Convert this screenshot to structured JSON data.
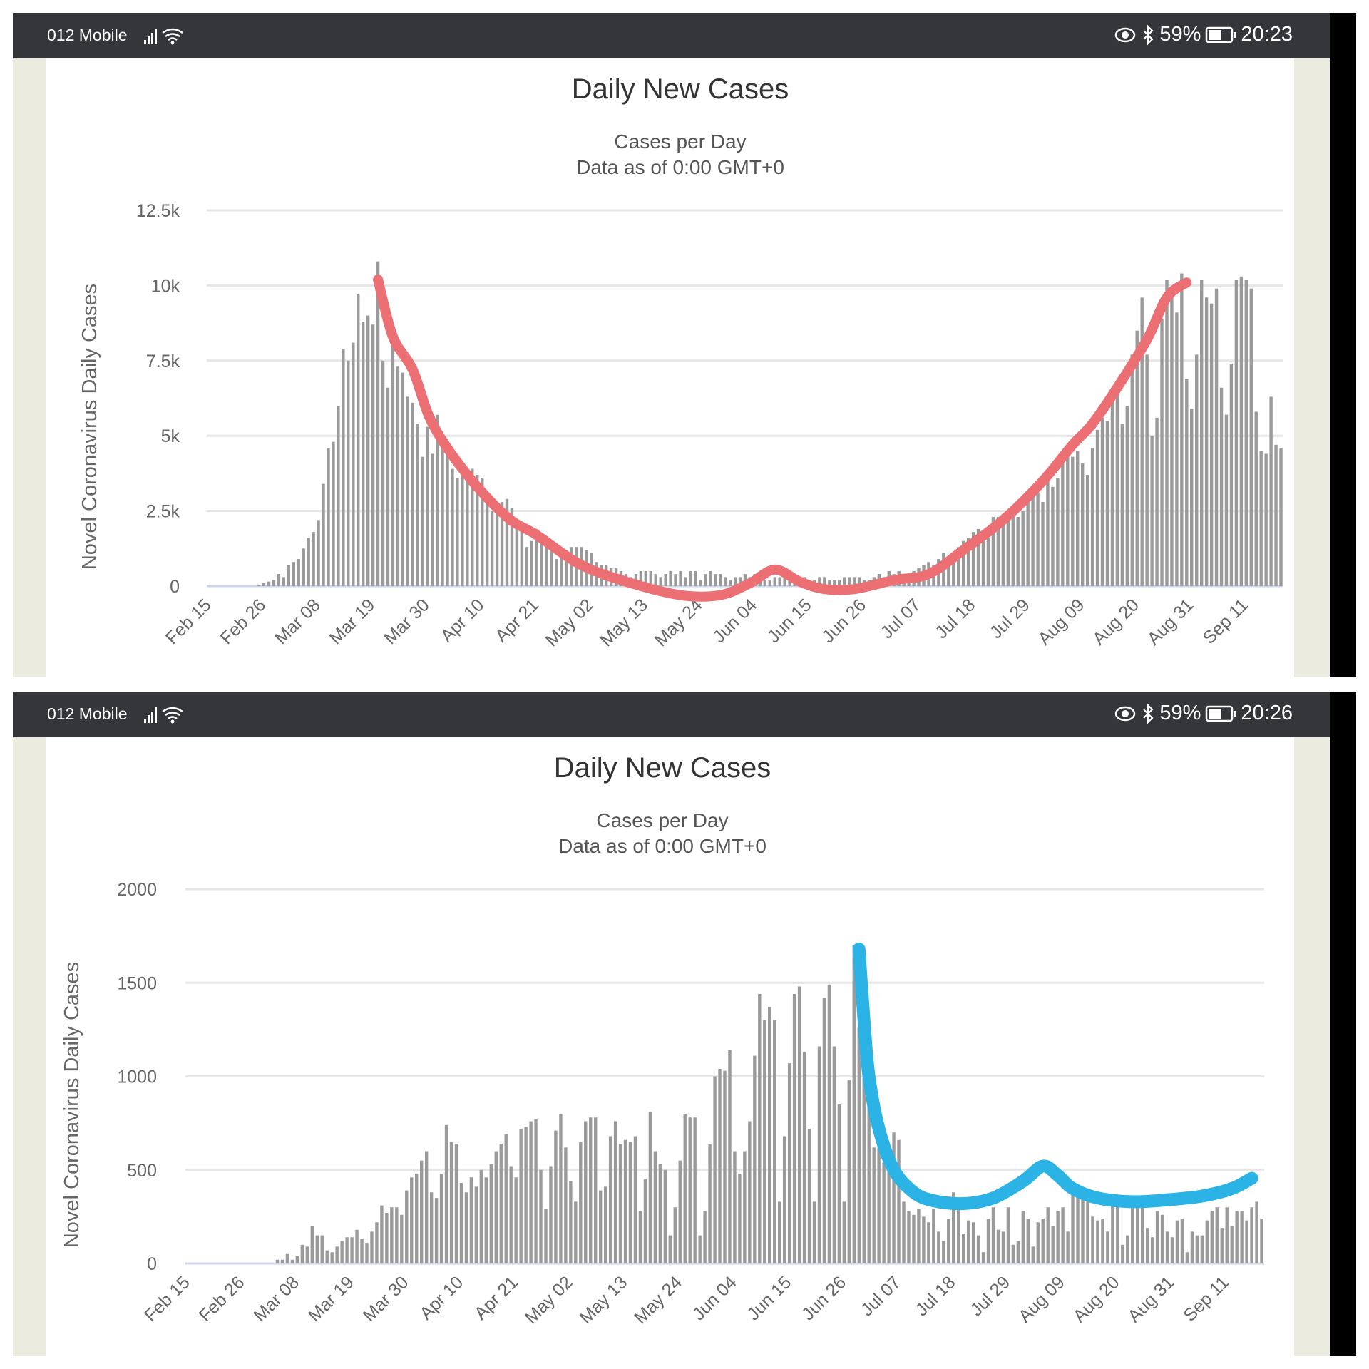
{
  "screens": [
    {
      "status_bar": {
        "carrier": "012 Mobile",
        "battery": "59%",
        "time": "20:23"
      },
      "title": "Daily New Cases",
      "subtitle_1": "Cases per Day",
      "subtitle_2": "Data as of 0:00 GMT+0"
    },
    {
      "status_bar": {
        "carrier": "012 Mobile",
        "battery": "59%",
        "time": "20:26"
      },
      "title": "Daily New Cases",
      "subtitle_1": "Cases per Day",
      "subtitle_2": "Data as of 0:00 GMT+0"
    }
  ],
  "colors": {
    "bar": "#9a9a9a",
    "grid": "#e6e6e6",
    "red_annotation": "#ec6f74",
    "blue_annotation": "#2bb3e6",
    "status_bg": "#35363a"
  },
  "chart_data": [
    {
      "type": "bar",
      "title": "Daily New Cases",
      "subtitle": "Cases per Day / Data as of 0:00 GMT+0",
      "xlabel": "",
      "ylabel": "Novel Coronavirus Daily Cases",
      "ylim": [
        0,
        12500
      ],
      "yticks": [
        0,
        2500,
        5000,
        7500,
        10000,
        12500
      ],
      "ytick_labels": [
        "0",
        "2.5k",
        "5k",
        "7.5k",
        "10k",
        "12.5k"
      ],
      "x_start": "Feb 15",
      "xtick_labels": [
        "Feb 15",
        "Feb 26",
        "Mar 08",
        "Mar 19",
        "Mar 30",
        "Apr 10",
        "Apr 21",
        "May 02",
        "May 13",
        "May 24",
        "Jun 04",
        "Jun 15",
        "Jun 26",
        "Jul 07",
        "Jul 18",
        "Jul 29",
        "Aug 09",
        "Aug 20",
        "Aug 31",
        "Sep 11"
      ],
      "xtick_step_days": 11,
      "grid": true,
      "values": [
        0,
        0,
        0,
        0,
        0,
        0,
        0,
        0,
        0,
        0,
        50,
        100,
        150,
        200,
        400,
        300,
        700,
        800,
        900,
        1250,
        1600,
        1800,
        2200,
        3400,
        4600,
        4800,
        6000,
        7900,
        7500,
        8100,
        9700,
        8800,
        9000,
        8700,
        10800,
        7500,
        6600,
        8400,
        7300,
        7100,
        6300,
        6100,
        5400,
        4300,
        5300,
        4400,
        5700,
        4600,
        4600,
        3900,
        3600,
        3800,
        3500,
        3900,
        3700,
        3600,
        3100,
        2500,
        2700,
        2800,
        2900,
        2600,
        2200,
        2000,
        1300,
        1500,
        1900,
        1700,
        1600,
        1200,
        900,
        1100,
        1200,
        1300,
        1300,
        1300,
        1200,
        1100,
        800,
        700,
        700,
        600,
        600,
        500,
        400,
        300,
        400,
        500,
        500,
        500,
        400,
        300,
        400,
        500,
        400,
        500,
        300,
        500,
        500,
        200,
        400,
        500,
        400,
        400,
        300,
        200,
        300,
        300,
        400,
        300,
        400,
        400,
        200,
        200,
        300,
        300,
        300,
        200,
        300,
        200,
        300,
        200,
        200,
        300,
        300,
        200,
        200,
        200,
        300,
        300,
        300,
        300,
        200,
        200,
        300,
        400,
        300,
        500,
        400,
        500,
        400,
        300,
        500,
        600,
        700,
        800,
        700,
        900,
        1100,
        900,
        1000,
        1300,
        1500,
        1600,
        1800,
        1900,
        1700,
        1600,
        2300,
        2300,
        2400,
        2200,
        2500,
        2300,
        2500,
        2800,
        3000,
        3100,
        2800,
        3500,
        3300,
        3600,
        4100,
        4400,
        4300,
        4500,
        4100,
        3700,
        4600,
        5200,
        5600,
        5500,
        6300,
        6700,
        5400,
        6000,
        7700,
        8500,
        9600,
        7700,
        5000,
        5600,
        8900,
        10200,
        9600,
        9100,
        10400,
        6900,
        5900,
        7700,
        10200,
        9600,
        9400,
        9900,
        6600,
        5700,
        7400,
        10200,
        10300,
        10200,
        9900,
        5800,
        4500,
        4400,
        6300,
        4700,
        4600
      ],
      "annotation": {
        "color": "#ec6f74",
        "points": [
          [
            34,
            10200
          ],
          [
            37,
            8300
          ],
          [
            41,
            7200
          ],
          [
            45,
            5400
          ],
          [
            52,
            3700
          ],
          [
            60,
            2300
          ],
          [
            66,
            1700
          ],
          [
            75,
            700
          ],
          [
            85,
            100
          ],
          [
            95,
            -300
          ],
          [
            103,
            -300
          ],
          [
            109,
            100
          ],
          [
            114,
            550
          ],
          [
            119,
            150
          ],
          [
            124,
            -100
          ],
          [
            130,
            -100
          ],
          [
            138,
            200
          ],
          [
            145,
            400
          ],
          [
            152,
            1200
          ],
          [
            160,
            2200
          ],
          [
            168,
            3500
          ],
          [
            174,
            4700
          ],
          [
            178,
            5400
          ],
          [
            183,
            6600
          ],
          [
            189,
            8200
          ],
          [
            193,
            9600
          ],
          [
            197,
            10100
          ]
        ]
      }
    },
    {
      "type": "bar",
      "title": "Daily New Cases",
      "subtitle": "Cases per Day / Data as of 0:00 GMT+0",
      "xlabel": "",
      "ylabel": "Novel Coronavirus Daily Cases",
      "ylim": [
        0,
        2000
      ],
      "yticks": [
        0,
        500,
        1000,
        1500,
        2000
      ],
      "ytick_labels": [
        "0",
        "500",
        "1000",
        "1500",
        "2000"
      ],
      "x_start": "Feb 15",
      "xtick_labels": [
        "Feb 15",
        "Feb 26",
        "Mar 08",
        "Mar 19",
        "Mar 30",
        "Apr 10",
        "Apr 21",
        "May 02",
        "May 13",
        "May 24",
        "Jun 04",
        "Jun 15",
        "Jun 26",
        "Jul 07",
        "Jul 18",
        "Jul 29",
        "Aug 09",
        "Aug 20",
        "Aug 31",
        "Sep 11"
      ],
      "xtick_step_days": 11,
      "grid": true,
      "values": [
        0,
        0,
        0,
        0,
        0,
        0,
        0,
        0,
        0,
        0,
        0,
        0,
        0,
        0,
        0,
        0,
        0,
        0,
        20,
        20,
        50,
        20,
        40,
        100,
        90,
        200,
        150,
        150,
        70,
        60,
        90,
        120,
        140,
        140,
        180,
        130,
        110,
        170,
        220,
        310,
        270,
        300,
        300,
        260,
        390,
        460,
        480,
        550,
        600,
        380,
        350,
        480,
        740,
        650,
        640,
        430,
        380,
        460,
        410,
        500,
        460,
        530,
        600,
        640,
        690,
        520,
        460,
        720,
        730,
        760,
        770,
        500,
        290,
        520,
        710,
        800,
        620,
        440,
        330,
        650,
        760,
        780,
        780,
        390,
        410,
        680,
        760,
        640,
        660,
        650,
        680,
        280,
        450,
        810,
        600,
        530,
        500,
        150,
        300,
        550,
        800,
        780,
        780,
        150,
        280,
        640,
        1000,
        1040,
        1030,
        1140,
        600,
        480,
        600,
        760,
        1110,
        1440,
        1300,
        1370,
        1300,
        330,
        680,
        1070,
        1440,
        1480,
        1130,
        720,
        330,
        1160,
        1420,
        1490,
        1160,
        850,
        330,
        980,
        1700,
        1260,
        1200,
        950,
        620,
        620,
        540,
        500,
        700,
        660,
        330,
        280,
        260,
        290,
        250,
        220,
        290,
        170,
        120,
        240,
        380,
        290,
        160,
        230,
        220,
        150,
        60,
        240,
        300,
        180,
        170,
        300,
        100,
        120,
        280,
        240,
        90,
        220,
        240,
        300,
        200,
        280,
        300,
        170,
        400,
        400,
        340,
        330,
        250,
        230,
        240,
        170,
        310,
        320,
        100,
        150,
        310,
        320,
        330,
        190,
        140,
        280,
        260,
        170,
        140,
        230,
        240,
        60,
        170,
        150,
        150,
        230,
        280,
        300,
        190,
        300,
        200,
        280,
        280,
        230,
        300,
        330,
        240
      ],
      "annotation": {
        "color": "#2bb3e6",
        "points": [
          [
            135,
            1680
          ],
          [
            136,
            1300
          ],
          [
            137,
            1000
          ],
          [
            139,
            720
          ],
          [
            142,
            500
          ],
          [
            146,
            380
          ],
          [
            150,
            335
          ],
          [
            156,
            320
          ],
          [
            162,
            350
          ],
          [
            168,
            440
          ],
          [
            172,
            520
          ],
          [
            175,
            470
          ],
          [
            178,
            400
          ],
          [
            183,
            350
          ],
          [
            190,
            330
          ],
          [
            197,
            340
          ],
          [
            204,
            360
          ],
          [
            210,
            400
          ],
          [
            214,
            455
          ]
        ]
      }
    }
  ]
}
